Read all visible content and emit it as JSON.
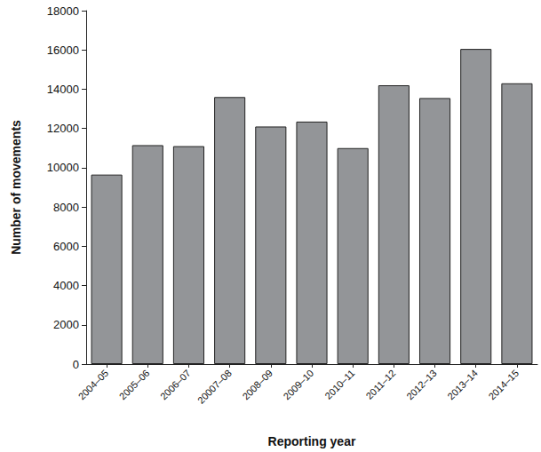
{
  "chart_data": {
    "type": "bar",
    "x_label": "Reporting year",
    "y_label": "Number of movements",
    "categories": [
      "2004–05",
      "2005–06",
      "2006–07",
      "20007–08",
      "2008–09",
      "2009–10",
      "2010–11",
      "2011–12",
      "2012–13",
      "2013–14",
      "2014–15"
    ],
    "values": [
      9650,
      11150,
      11100,
      13600,
      12100,
      12350,
      11000,
      14200,
      13550,
      16050,
      14300
    ],
    "color": "#939598",
    "ylim": [
      0,
      18000
    ],
    "yticks": [
      0,
      2000,
      4000,
      6000,
      8000,
      10000,
      12000,
      14000,
      16000,
      18000
    ],
    "grid": false
  }
}
